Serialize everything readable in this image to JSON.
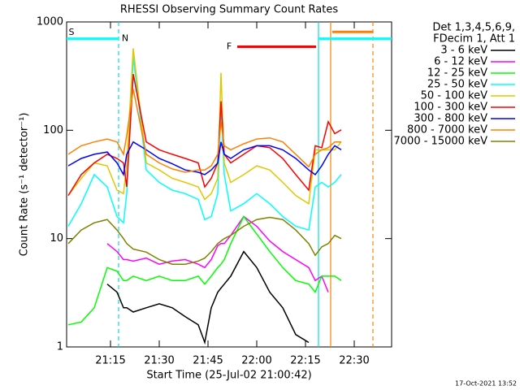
{
  "chart_data": {
    "type": "line",
    "title": "RHESSI Observing Summary Count Rates",
    "xlabel": "Start Time (25-Jul-02 21:00:42)",
    "ylabel": "Count Rate (s⁻¹ detector⁻¹)",
    "footer": "17-Oct-2021 13:52",
    "legend_header": [
      "Det 1,3,4,5,6,9,",
      "FDecim 1, Att 1"
    ],
    "log_y": true,
    "xlim": [
      1.5,
      101.5
    ],
    "xticks": [
      {
        "value": 15,
        "label": "21:15"
      },
      {
        "value": 30,
        "label": "21:30"
      },
      {
        "value": 45,
        "label": "21:45"
      },
      {
        "value": 60,
        "label": "22:00"
      },
      {
        "value": 75,
        "label": "22:15"
      },
      {
        "value": 90,
        "label": "22:30"
      }
    ],
    "ylim": [
      1,
      1000
    ],
    "yticks": [
      1,
      10,
      100,
      1000
    ],
    "x": [
      2,
      6,
      10,
      14,
      17,
      19,
      20,
      22,
      26,
      30,
      34,
      38,
      42,
      44,
      46,
      48,
      49,
      50,
      52,
      56,
      60,
      64,
      68,
      72,
      76,
      78,
      80,
      82,
      84,
      86
    ],
    "series": [
      {
        "name": "3 - 6 keV",
        "color": "#000000",
        "values": [
          null,
          null,
          null,
          3.8,
          3.2,
          2.3,
          2.3,
          2.1,
          2.3,
          2.5,
          2.3,
          1.9,
          1.6,
          1.1,
          2.3,
          3.2,
          3.5,
          3.8,
          4.5,
          7.6,
          5.4,
          3.2,
          2.3,
          1.3,
          1.1,
          null,
          null,
          null,
          null,
          null
        ]
      },
      {
        "name": "6 - 12 keV",
        "color": "#ff00ff",
        "values": [
          null,
          null,
          null,
          9,
          7.6,
          6.4,
          6.4,
          6.2,
          6.6,
          5.8,
          6.2,
          6.4,
          5.8,
          5.4,
          6.4,
          8.6,
          9,
          9,
          10.7,
          16,
          13,
          9.5,
          7.6,
          6.4,
          5.4,
          4.1,
          4.5,
          3.2,
          null,
          null
        ]
      },
      {
        "name": "12 - 25 keV",
        "color": "#00ff00",
        "values": [
          1.6,
          1.7,
          2.3,
          5.4,
          5,
          4.1,
          4.1,
          4.5,
          4.1,
          4.5,
          4.1,
          4.1,
          4.5,
          3.8,
          4.5,
          5.4,
          5.8,
          6.4,
          9,
          16,
          11,
          7.6,
          5.4,
          4.1,
          3.8,
          3.2,
          4.5,
          4.5,
          4.5,
          4.1
        ]
      },
      {
        "name": "25 - 50 keV",
        "color": "#00ffff",
        "values": [
          13,
          21,
          39,
          30,
          16,
          14,
          26,
          480,
          43,
          33,
          28,
          26,
          23,
          15,
          16,
          26,
          170,
          39,
          18,
          21,
          26,
          21,
          16,
          13,
          12,
          30,
          33,
          30,
          33,
          39
        ]
      },
      {
        "name": "50 - 100 keV",
        "color": "#e0c800",
        "values": [
          25,
          36,
          50,
          47,
          28,
          26,
          50,
          570,
          50,
          43,
          36,
          33,
          30,
          23,
          26,
          36,
          340,
          50,
          33,
          39,
          47,
          43,
          33,
          25,
          21,
          66,
          66,
          66,
          66,
          78
        ]
      },
      {
        "name": "100 - 300 keV",
        "color": "#ff0000",
        "values": [
          25,
          39,
          50,
          60,
          55,
          50,
          30,
          330,
          78,
          66,
          60,
          55,
          50,
          30,
          36,
          50,
          185,
          60,
          50,
          60,
          72,
          69,
          55,
          39,
          28,
          72,
          69,
          120,
          93,
          101
        ]
      },
      {
        "name": "300 - 800 keV",
        "color": "#0000ff",
        "values": [
          47,
          55,
          60,
          63,
          50,
          39,
          60,
          78,
          66,
          55,
          49,
          43,
          41,
          39,
          43,
          50,
          78,
          60,
          55,
          66,
          72,
          72,
          66,
          55,
          43,
          39,
          47,
          60,
          72,
          66
        ]
      },
      {
        "name": "800 - 7000 keV",
        "color": "#ff8000",
        "values": [
          60,
          72,
          78,
          83,
          78,
          60,
          90,
          240,
          60,
          50,
          44,
          41,
          43,
          43,
          47,
          60,
          120,
          72,
          66,
          75,
          83,
          85,
          78,
          60,
          46,
          60,
          66,
          69,
          78,
          78
        ]
      },
      {
        "name": "7000 - 15000 keV",
        "color": "#808000",
        "values": [
          9,
          12,
          14,
          15,
          12,
          10,
          9,
          8,
          7.5,
          6.4,
          5.8,
          5.8,
          6.2,
          6.6,
          7.6,
          9,
          9.5,
          10,
          10.7,
          13,
          15,
          15.7,
          15,
          12,
          9,
          7,
          8.4,
          9,
          10.7,
          10
        ]
      }
    ],
    "annotations": [
      {
        "text": "S",
        "x": 3,
        "y": 800,
        "color": "#ff8000"
      },
      {
        "text": "N",
        "x": 19.5,
        "y": 700,
        "color": "#00e0e0"
      },
      {
        "text": "F",
        "x": 51.5,
        "y": 590,
        "color": "#ff0000"
      }
    ],
    "flag_bars": [
      {
        "start": 1.5,
        "end": 17.5,
        "level": 700,
        "color": "#00ffff"
      },
      {
        "start": 79,
        "end": 101.5,
        "level": 700,
        "color": "#00ffff"
      },
      {
        "start": 54,
        "end": 78.25,
        "level": 590,
        "color": "#ff0000"
      },
      {
        "start": 83.25,
        "end": 95.75,
        "level": 810,
        "color": "#ff8000"
      }
    ],
    "vlines": [
      {
        "x": 17.5,
        "color": "#00e0e0",
        "dashed": true
      },
      {
        "x": 79,
        "color": "#00e0e0",
        "dashed": false
      },
      {
        "x": 82.75,
        "color": "#ff8000",
        "dashed": false
      },
      {
        "x": 95.75,
        "color": "#ff8000",
        "dashed": true
      }
    ]
  }
}
